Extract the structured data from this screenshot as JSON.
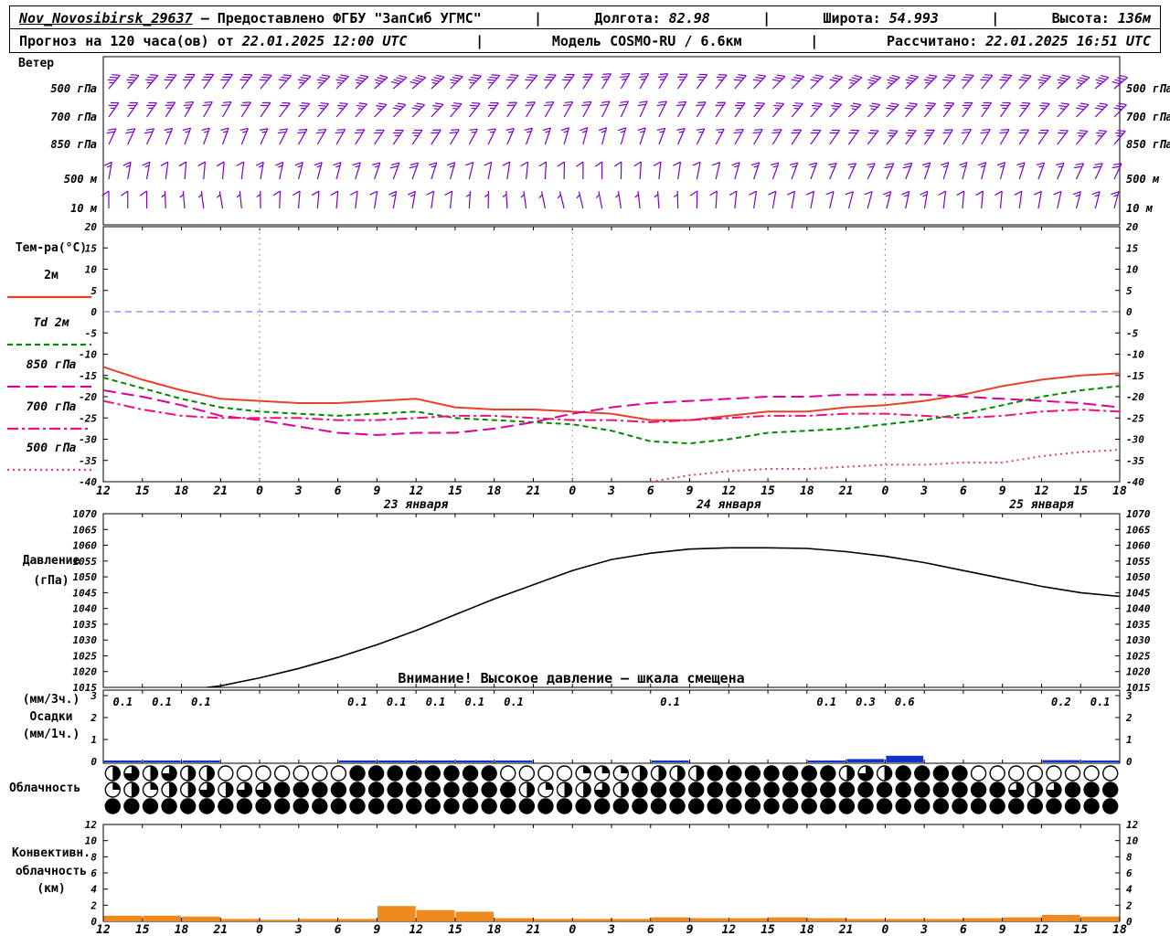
{
  "header": {
    "sep": "|",
    "station": "Nov_Novosibirsk_29637",
    "provider": "— Предоставлено ФГБУ \"ЗапСиб УГМС\"",
    "lon_label": "Долгота:",
    "lon_value": "82.98",
    "lat_label": "Широта:",
    "lat_value": "54.993",
    "alt_label": "Высота:",
    "alt_value": "136м",
    "forecast_label": "Прогноз на 120 часа(ов) от",
    "forecast_value": "22.01.2025 12:00 UTC",
    "model_label": "Модель",
    "model_value": "COSMO-RU / 6.6км",
    "calc_label": "Рассчитано:",
    "calc_value": "22.01.2025 16:51 UTC"
  },
  "labels": {
    "wind": "Ветер",
    "temp_title": "Тем-ра(°C)",
    "pressure1": "Давление",
    "pressure2": "(гПа)",
    "precip1": "(мм/3ч.)",
    "precip2": "Осадки",
    "precip3": "(мм/1ч.)",
    "cloud": "Облачность",
    "conv1": "Конвективн.",
    "conv2": "облачность",
    "conv3": "(км)"
  },
  "chart_data": {
    "type": "meteogram",
    "x_hours": [
      "12",
      "15",
      "18",
      "21",
      "0",
      "3",
      "6",
      "9",
      "12",
      "15",
      "18",
      "21",
      "0",
      "3",
      "6",
      "9",
      "12",
      "15",
      "18",
      "21",
      "0",
      "3",
      "6",
      "9",
      "12",
      "15",
      "18"
    ],
    "date_labels": [
      {
        "text": "23 января",
        "index": 8
      },
      {
        "text": "24 января",
        "index": 16
      },
      {
        "text": "25 января",
        "index": 24
      }
    ],
    "wind": {
      "color": "#7a00c8",
      "levels": [
        {
          "label": "500 гПа",
          "speeds": [
            35,
            35,
            30,
            30,
            30,
            35,
            35,
            40,
            40,
            35,
            35,
            30,
            30,
            25,
            25,
            25,
            30,
            30,
            30,
            35,
            35,
            35,
            30,
            30,
            35,
            35,
            40
          ],
          "dirs": [
            250,
            250,
            245,
            245,
            250,
            255,
            255,
            260,
            260,
            255,
            250,
            250,
            245,
            240,
            240,
            245,
            250,
            255,
            255,
            260,
            260,
            255,
            250,
            250,
            255,
            260,
            260
          ]
        },
        {
          "label": "700 гПа",
          "speeds": [
            25,
            25,
            25,
            20,
            20,
            25,
            25,
            30,
            30,
            25,
            25,
            20,
            20,
            20,
            20,
            20,
            25,
            25,
            25,
            25,
            30,
            30,
            25,
            25,
            25,
            30,
            30
          ],
          "dirs": [
            245,
            245,
            240,
            240,
            245,
            250,
            250,
            255,
            255,
            250,
            245,
            240,
            240,
            235,
            235,
            240,
            245,
            250,
            250,
            255,
            255,
            250,
            245,
            245,
            250,
            255,
            255
          ]
        },
        {
          "label": "850 гПа",
          "speeds": [
            20,
            20,
            15,
            15,
            20,
            20,
            20,
            25,
            25,
            20,
            15,
            15,
            15,
            15,
            15,
            15,
            20,
            20,
            20,
            20,
            25,
            25,
            20,
            20,
            20,
            25,
            25
          ],
          "dirs": [
            235,
            235,
            230,
            230,
            235,
            240,
            240,
            245,
            245,
            240,
            235,
            230,
            225,
            225,
            230,
            235,
            240,
            240,
            245,
            245,
            250,
            245,
            240,
            240,
            245,
            250,
            250
          ]
        },
        {
          "label": "500 м",
          "speeds": [
            15,
            15,
            10,
            10,
            15,
            15,
            15,
            20,
            20,
            15,
            10,
            10,
            10,
            10,
            10,
            10,
            15,
            15,
            15,
            15,
            20,
            20,
            15,
            15,
            15,
            20,
            20
          ],
          "dirs": [
            220,
            220,
            215,
            215,
            220,
            225,
            225,
            230,
            230,
            225,
            220,
            215,
            210,
            210,
            215,
            220,
            225,
            230,
            230,
            235,
            235,
            230,
            225,
            225,
            230,
            235,
            235
          ]
        },
        {
          "label": "10 м",
          "speeds": [
            10,
            10,
            5,
            5,
            10,
            10,
            10,
            15,
            15,
            10,
            5,
            5,
            5,
            5,
            5,
            10,
            10,
            10,
            10,
            10,
            15,
            15,
            10,
            10,
            10,
            15,
            15
          ],
          "dirs": [
            210,
            210,
            205,
            200,
            210,
            215,
            215,
            220,
            220,
            215,
            210,
            200,
            195,
            200,
            205,
            210,
            215,
            220,
            220,
            225,
            225,
            220,
            215,
            215,
            220,
            225,
            225
          ]
        }
      ]
    },
    "temperature": {
      "ylim": [
        -40,
        20
      ],
      "ticks": [
        20,
        15,
        10,
        5,
        0,
        -5,
        -10,
        -15,
        -20,
        -25,
        -30,
        -35,
        -40
      ],
      "series": [
        {
          "name": "2м",
          "color": "#e8402a",
          "dash": "",
          "values": [
            -13,
            -16,
            -18.5,
            -20.5,
            -21,
            -21.5,
            -21.5,
            -21,
            -20.5,
            -22.5,
            -23,
            -23,
            -23.5,
            -24,
            -25.5,
            -25.5,
            -24.5,
            -23.5,
            -23.5,
            -22.5,
            -22,
            -21,
            -19.5,
            -17.5,
            -16,
            -15,
            -14.5
          ]
        },
        {
          "name": "Td 2м",
          "color": "#008800",
          "dash": "6,4",
          "values": [
            -15.5,
            -18,
            -20.5,
            -22.5,
            -23.5,
            -24,
            -24.5,
            -24,
            -23.5,
            -25,
            -25.5,
            -26,
            -26.5,
            -28,
            -30.5,
            -31,
            -30,
            -28.5,
            -28,
            -27.5,
            -26.5,
            -25.5,
            -24,
            -22,
            -20,
            -18.5,
            -17.5
          ]
        },
        {
          "name": "850 гПа",
          "color": "#dd0099",
          "dash": "14,6",
          "values": [
            -18.5,
            -20,
            -22,
            -24.5,
            -25.5,
            -27,
            -28.5,
            -29,
            -28.5,
            -28.5,
            -27.5,
            -26,
            -24,
            -22.5,
            -21.5,
            -21,
            -20.5,
            -20,
            -20,
            -19.5,
            -19.5,
            -19.5,
            -20,
            -20.5,
            -21,
            -21.5,
            -22.5
          ]
        },
        {
          "name": "700 гПа",
          "color": "#ee1177",
          "dash": "12,4,3,4",
          "values": [
            -21,
            -23,
            -24.5,
            -25,
            -25,
            -25,
            -25.5,
            -25.5,
            -25,
            -24.5,
            -24.5,
            -25,
            -25.5,
            -25.5,
            -26,
            -25.5,
            -25,
            -24.5,
            -24.5,
            -24,
            -24,
            -24.5,
            -25,
            -24.5,
            -23.5,
            -23,
            -23.5
          ]
        },
        {
          "name": "500 гПа",
          "color": "#ee3399",
          "dash": "2,4",
          "values": [
            null,
            null,
            null,
            null,
            null,
            null,
            null,
            null,
            null,
            null,
            null,
            null,
            null,
            null,
            -40,
            -38.5,
            -37.5,
            -37,
            -37,
            -36.5,
            -36,
            -36,
            -35.5,
            -35.5,
            -34,
            -33,
            -32.5
          ]
        }
      ]
    },
    "pressure": {
      "ylim": [
        1015,
        1070
      ],
      "ticks": [
        1070,
        1065,
        1060,
        1055,
        1050,
        1045,
        1040,
        1035,
        1030,
        1025,
        1020,
        1015
      ],
      "color": "#000000",
      "note": "Внимание! Высокое давление — шкала смещена",
      "values": [
        1011,
        1012.5,
        1014,
        1015.5,
        1018,
        1021,
        1024.5,
        1028.5,
        1033,
        1038,
        1043,
        1047.5,
        1052,
        1055.5,
        1057.5,
        1058.8,
        1059.2,
        1059.2,
        1059,
        1058,
        1056.5,
        1054.5,
        1052,
        1049.5,
        1047,
        1045,
        1043.8
      ]
    },
    "precipitation": {
      "ticks": [
        3,
        2,
        1,
        0
      ],
      "color": "#1133cc",
      "values_3h": [
        0.1,
        0.1,
        0.1,
        0,
        0,
        0,
        0.1,
        0.1,
        0.1,
        0.1,
        0.1,
        0,
        0,
        0,
        0.1,
        0,
        0,
        0,
        0.1,
        0.3,
        0.6,
        0,
        0,
        0,
        0.2,
        0.1,
        0
      ]
    },
    "cloud": {
      "rows": [
        [
          0.5,
          0.75,
          0.5,
          0.75,
          0.5,
          0.5,
          0,
          0,
          0,
          0,
          0,
          0,
          0,
          1,
          1,
          1,
          1,
          1,
          1,
          1,
          1,
          0,
          0,
          0,
          0,
          0.25,
          0.25,
          0.25,
          0.5,
          0.5,
          0.5,
          0.5,
          1,
          1,
          1,
          1,
          1,
          1,
          1,
          0.5,
          0.75,
          0.5,
          1,
          1,
          1,
          1,
          0,
          0,
          0,
          0,
          0,
          0,
          0,
          0
        ],
        [
          0.25,
          0.5,
          0.25,
          0.5,
          0.5,
          0.75,
          0.5,
          0.75,
          0.75,
          1,
          1,
          1,
          1,
          1,
          1,
          1,
          1,
          1,
          1,
          1,
          1,
          1,
          0.5,
          0.25,
          0.5,
          0.5,
          0.75,
          0.5,
          1,
          1,
          1,
          1,
          1,
          1,
          1,
          1,
          1,
          1,
          1,
          1,
          1,
          1,
          1,
          1,
          1,
          1,
          1,
          1,
          0.75,
          0.5,
          0.75,
          1,
          1,
          1
        ],
        [
          1,
          1,
          1,
          1,
          1,
          1,
          1,
          1,
          1,
          1,
          1,
          1,
          1,
          1,
          1,
          1,
          1,
          1,
          1,
          1,
          1,
          1,
          1,
          1,
          1,
          1,
          1,
          1,
          1,
          1,
          1,
          1,
          1,
          1,
          1,
          1,
          1,
          1,
          1,
          1,
          1,
          1,
          1,
          1,
          1,
          1,
          1,
          1,
          1,
          1,
          1,
          1,
          1,
          1
        ]
      ]
    },
    "convective": {
      "ylim": [
        0,
        12
      ],
      "ticks": [
        12,
        10,
        8,
        6,
        4,
        2,
        0
      ],
      "color": "#ef8a1e",
      "values_km": [
        0.7,
        0.7,
        0.6,
        0.3,
        0.2,
        0.3,
        0.3,
        1.9,
        1.4,
        1.2,
        0.4,
        0.3,
        0.3,
        0.3,
        0.5,
        0.4,
        0.4,
        0.5,
        0.4,
        0.3,
        0.3,
        0.3,
        0.4,
        0.5,
        0.8,
        0.6,
        0.4
      ]
    }
  }
}
